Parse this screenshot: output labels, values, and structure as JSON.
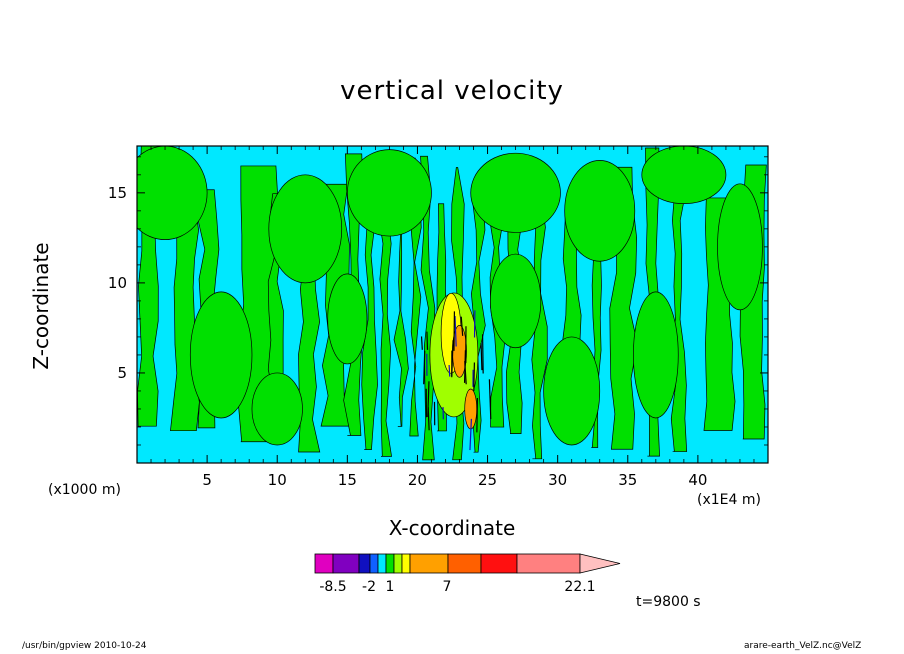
{
  "chart_data": {
    "type": "heatmap",
    "title": "vertical velocity",
    "xlabel": "X-coordinate",
    "ylabel": "Z-coordinate",
    "x_unit_left": "(x1000 m)",
    "x_unit_right": "(x1E4 m)",
    "xlim": [
      0,
      45
    ],
    "ylim": [
      0,
      17.6
    ],
    "x_ticks": [
      5,
      10,
      15,
      20,
      25,
      30,
      35,
      40
    ],
    "y_ticks": [
      5,
      10,
      15
    ],
    "colorbar": {
      "bins": [
        {
          "color": "#e000c0"
        },
        {
          "color": "#8000c0"
        },
        {
          "color": "#1010c0"
        },
        {
          "color": "#1060ff"
        },
        {
          "color": "#00e8ff"
        },
        {
          "color": "#00e000"
        },
        {
          "color": "#a0ff00"
        },
        {
          "color": "#ffff00"
        },
        {
          "color": "#ffa000"
        },
        {
          "color": "#ff6000"
        },
        {
          "color": "#ff1010"
        },
        {
          "color": "#ff8080"
        },
        {
          "color": "#ffc0c0"
        }
      ],
      "labels": [
        "-8.5",
        "-2",
        "1",
        "7",
        "22.1"
      ]
    },
    "field_colors": {
      "background": "#00e8ff",
      "positive": "#00e000",
      "light": "#a0ff00",
      "yellow": "#ffff00",
      "orange": "#ffa000",
      "negative_blue": "#1010c0"
    }
  },
  "annotations": {
    "time": "t=9800 s",
    "footer_left": "/usr/bin/gpview   2010-10-24",
    "footer_right": "arare-earth_VelZ.nc@VelZ"
  }
}
